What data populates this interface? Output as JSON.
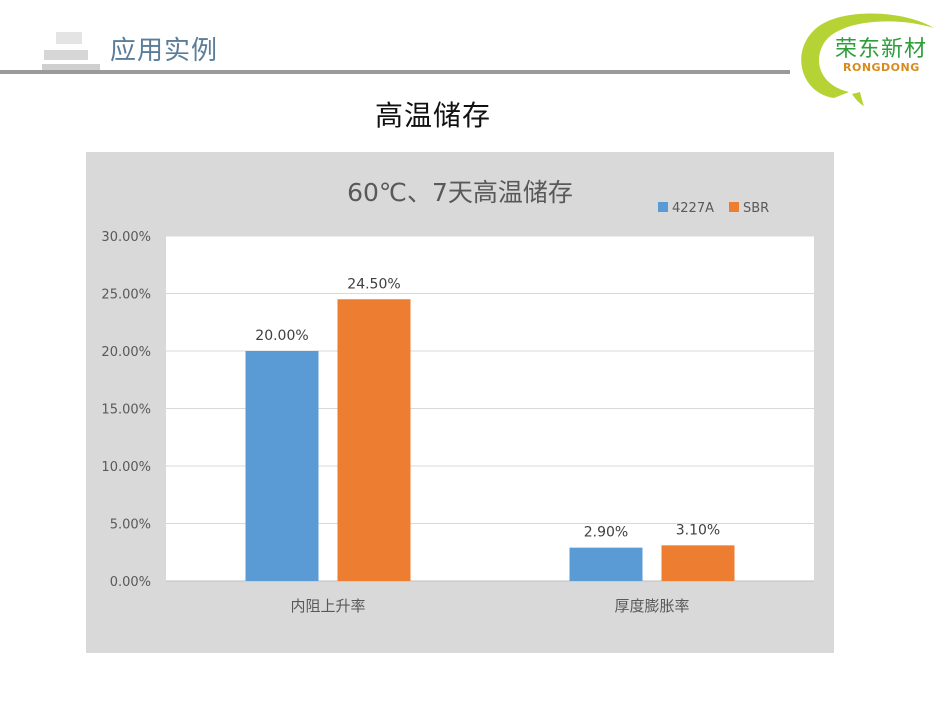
{
  "header": {
    "section_title": "应用实例"
  },
  "logo": {
    "name_cn": "荣东新材",
    "name_en": "RONGDONG"
  },
  "slide": {
    "title": "高温储存"
  },
  "colors": {
    "series_1": "#5b9bd5",
    "series_2": "#ed7d31",
    "panel": "#d9d9d9",
    "gridline": "#d9d9d9"
  },
  "chart_data": {
    "type": "bar",
    "title": "60℃、7天高温储存",
    "categories": [
      "内阻上升率",
      "厚度膨胀率"
    ],
    "series": [
      {
        "name": "4227A",
        "values": [
          20.0,
          2.9
        ],
        "labels": [
          "20.00%",
          "2.90%"
        ]
      },
      {
        "name": "SBR",
        "values": [
          24.5,
          3.1
        ],
        "labels": [
          "24.50%",
          "3.10%"
        ]
      }
    ],
    "ylim": [
      0,
      30
    ],
    "yticks": [
      "0.00%",
      "5.00%",
      "10.00%",
      "15.00%",
      "20.00%",
      "25.00%",
      "30.00%"
    ],
    "legend_position": "top-right",
    "grid": true
  }
}
